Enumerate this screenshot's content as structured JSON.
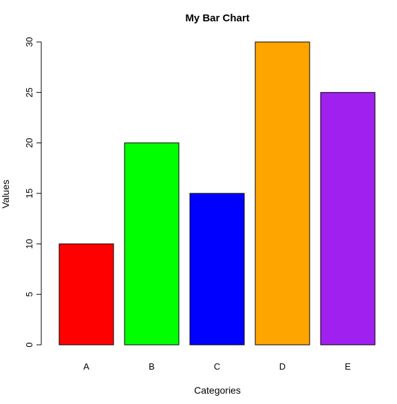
{
  "chart_data": {
    "type": "bar",
    "title": "My Bar Chart",
    "xlabel": "Categories",
    "ylabel": "Values",
    "categories": [
      "A",
      "B",
      "C",
      "D",
      "E"
    ],
    "values": [
      10,
      20,
      15,
      30,
      25
    ],
    "colors": [
      "#ff0000",
      "#00ff00",
      "#0000ff",
      "#ffa500",
      "#a020f0"
    ],
    "ylim": [
      0,
      30
    ],
    "yticks": [
      0,
      5,
      10,
      15,
      20,
      25,
      30
    ],
    "grid": false,
    "legend": "none"
  }
}
